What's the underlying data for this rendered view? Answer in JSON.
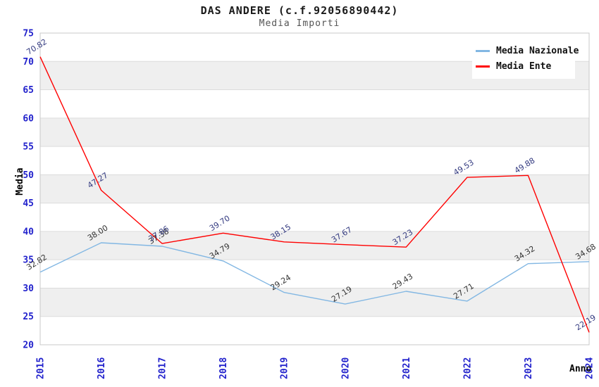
{
  "chart_data": {
    "type": "line",
    "title": "DAS ANDERE (c.f.92056890442)",
    "subtitle": "Media Importi",
    "xlabel": "Anno",
    "ylabel": "Media",
    "x": [
      "2015",
      "2016",
      "2017",
      "2018",
      "2019",
      "2020",
      "2021",
      "2022",
      "2023",
      "2024"
    ],
    "ylim": [
      20,
      75
    ],
    "yticks": [
      20,
      25,
      30,
      35,
      40,
      45,
      50,
      55,
      60,
      65,
      70,
      75
    ],
    "grid": true,
    "legend_position": "top-right",
    "bands": {
      "color": "#efefef",
      "ranges": [
        [
          25,
          30
        ],
        [
          35,
          40
        ],
        [
          45,
          50
        ],
        [
          55,
          60
        ],
        [
          65,
          70
        ]
      ]
    },
    "series": [
      {
        "name": "Media Nazionale",
        "color": "#82b7e3",
        "label_color": "#333333",
        "values": [
          32.82,
          38.0,
          37.38,
          34.79,
          29.24,
          27.19,
          29.43,
          27.71,
          34.32,
          34.68
        ],
        "labels": [
          "32.82",
          "38.00",
          "37.38",
          "34.79",
          "29.24",
          "27.19",
          "29.43",
          "27.71",
          "34.32",
          "34.68"
        ]
      },
      {
        "name": "Media Ente",
        "color": "#ff0000",
        "label_color": "#333a80",
        "values": [
          70.82,
          47.27,
          37.86,
          39.7,
          38.15,
          37.67,
          37.23,
          49.53,
          49.88,
          22.19
        ],
        "labels": [
          "70.82",
          "47.27",
          "37.86",
          "39.70",
          "38.15",
          "37.67",
          "37.23",
          "49.53",
          "49.88",
          "22.19"
        ]
      }
    ],
    "style": {
      "grid_color": "#dcdcdc",
      "border_color": "#c9c9c9",
      "tick_label_color": "#2222cc",
      "axis_title_color": "#000000"
    }
  }
}
